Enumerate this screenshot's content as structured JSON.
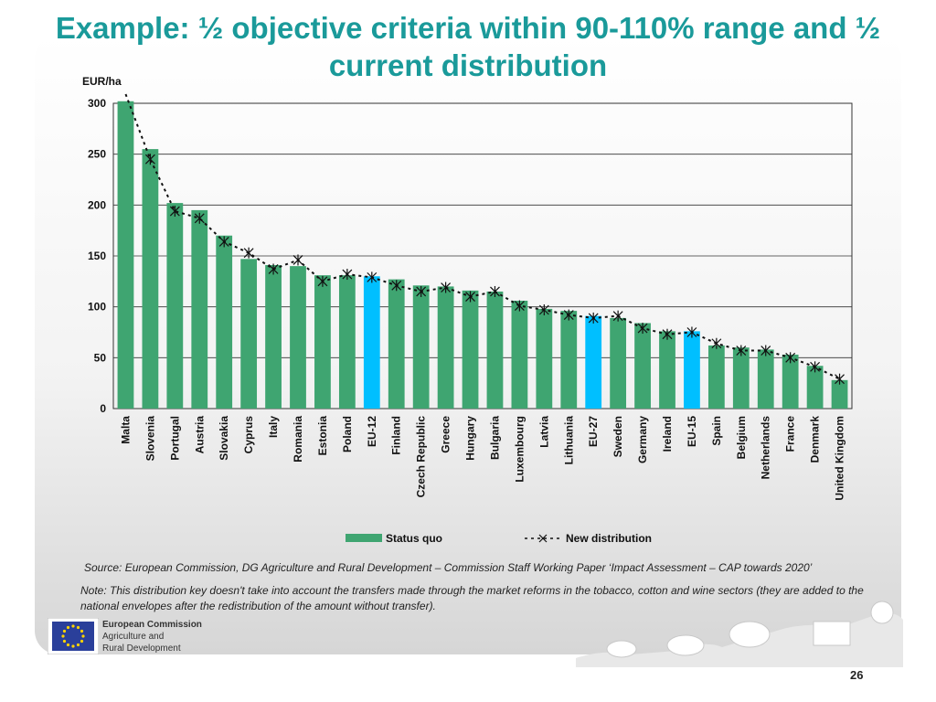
{
  "title": "Example: ½ objective criteria within 90-110% range and ½ current distribution",
  "source": "Source: European Commission, DG Agriculture and Rural Development – Commission Staff Working Paper ‘Impact Assessment – CAP towards 2020’",
  "note": "Note: This distribution key doesn't take into account the transfers made through the market reforms in the tobacco, cotton and wine sectors (they are added to the national envelopes after the redistribution of the amount without transfer).",
  "footer": {
    "org_line1": "European Commission",
    "org_line2": "Agriculture and",
    "org_line3": "Rural Development",
    "page_number": "26"
  },
  "colors": {
    "title": "#1a9a9a",
    "status_quo": "#3fa571",
    "highlight": "#00bfff"
  },
  "chart_data": {
    "type": "bar",
    "ylabel": "EUR/ha",
    "ylim": [
      0,
      300
    ],
    "yticks": [
      0,
      50,
      100,
      150,
      200,
      250,
      300
    ],
    "grid": true,
    "legend_position": "bottom",
    "categories": [
      "Malta",
      "Slovenia",
      "Portugal",
      "Austria",
      "Slovakia",
      "Cyprus",
      "Italy",
      "Romania",
      "Estonia",
      "Poland",
      "EU-12",
      "Finland",
      "Czech Republic",
      "Greece",
      "Hungary",
      "Bulgaria",
      "Luxembourg",
      "Latvia",
      "Lithuania",
      "EU-27",
      "Sweden",
      "Germany",
      "Ireland",
      "EU-15",
      "Spain",
      "Belgium",
      "Netherlands",
      "France",
      "Denmark",
      "United Kingdom"
    ],
    "highlighted_categories": [
      "EU-12",
      "EU-27",
      "EU-15"
    ],
    "series": [
      {
        "name": "Status quo",
        "style": "bar",
        "values": [
          302,
          255,
          202,
          195,
          170,
          147,
          141,
          140,
          131,
          131,
          130,
          127,
          121,
          120,
          116,
          115,
          106,
          98,
          96,
          91,
          89,
          84,
          76,
          76,
          62,
          60,
          58,
          53,
          42,
          28
        ]
      },
      {
        "name": "New distribution",
        "style": "dashed-line-x-marker",
        "values": [
          310,
          245,
          194,
          187,
          164,
          153,
          137,
          146,
          125,
          132,
          129,
          121,
          115,
          119,
          110,
          115,
          101,
          97,
          92,
          89,
          91,
          79,
          73,
          75,
          64,
          57,
          57,
          50,
          41,
          29
        ]
      }
    ]
  }
}
